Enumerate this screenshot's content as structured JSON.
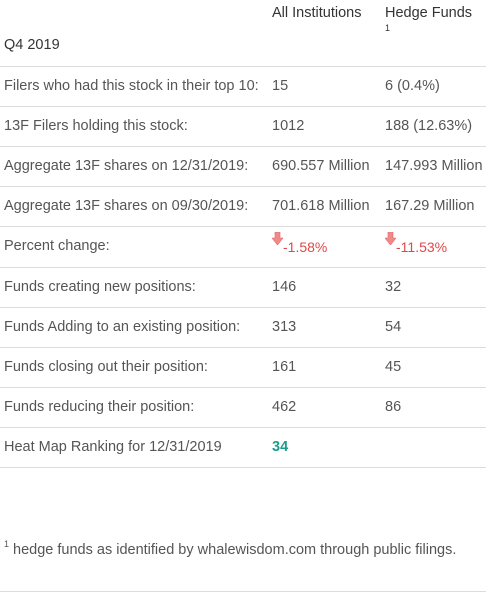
{
  "header": {
    "period": "Q4 2019",
    "col_all": "All Institutions",
    "col_hedge": "Hedge Funds",
    "col_hedge_footnote_marker": "1"
  },
  "rows": [
    {
      "label": "Filers who had this stock in their top 10:",
      "all": "15",
      "hedge": "6 (0.4%)"
    },
    {
      "label": "13F Filers holding this stock:",
      "all": "1012",
      "hedge": "188 (12.63%)"
    },
    {
      "label": "Aggregate 13F shares on 12/31/2019:",
      "all": "690.557 Million",
      "hedge": "147.993 Million"
    },
    {
      "label": "Aggregate 13F shares on 09/30/2019:",
      "all": "701.618 Million",
      "hedge": "167.29 Million"
    },
    {
      "label": "Percent change:",
      "all": "-1.58%",
      "hedge": "-11.53%"
    },
    {
      "label": "Funds creating new positions:",
      "all": "146",
      "hedge": "32"
    },
    {
      "label": "Funds Adding to an existing position:",
      "all": "313",
      "hedge": "54"
    },
    {
      "label": "Funds closing out their position:",
      "all": "161",
      "hedge": "45"
    },
    {
      "label": "Funds reducing their position:",
      "all": "462",
      "hedge": "86"
    },
    {
      "label": "Heat Map Ranking for 12/31/2019",
      "all": "34",
      "hedge": ""
    }
  ],
  "footnote": {
    "marker": "1",
    "text": "hedge funds as identified by whalewisdom.com through public filings."
  },
  "icons": {
    "down_arrow": "down-arrow-icon"
  },
  "colors": {
    "negative": "#e04848",
    "heat_rank": "#1a9e8a",
    "arrow_fill": "#f08a8a"
  }
}
